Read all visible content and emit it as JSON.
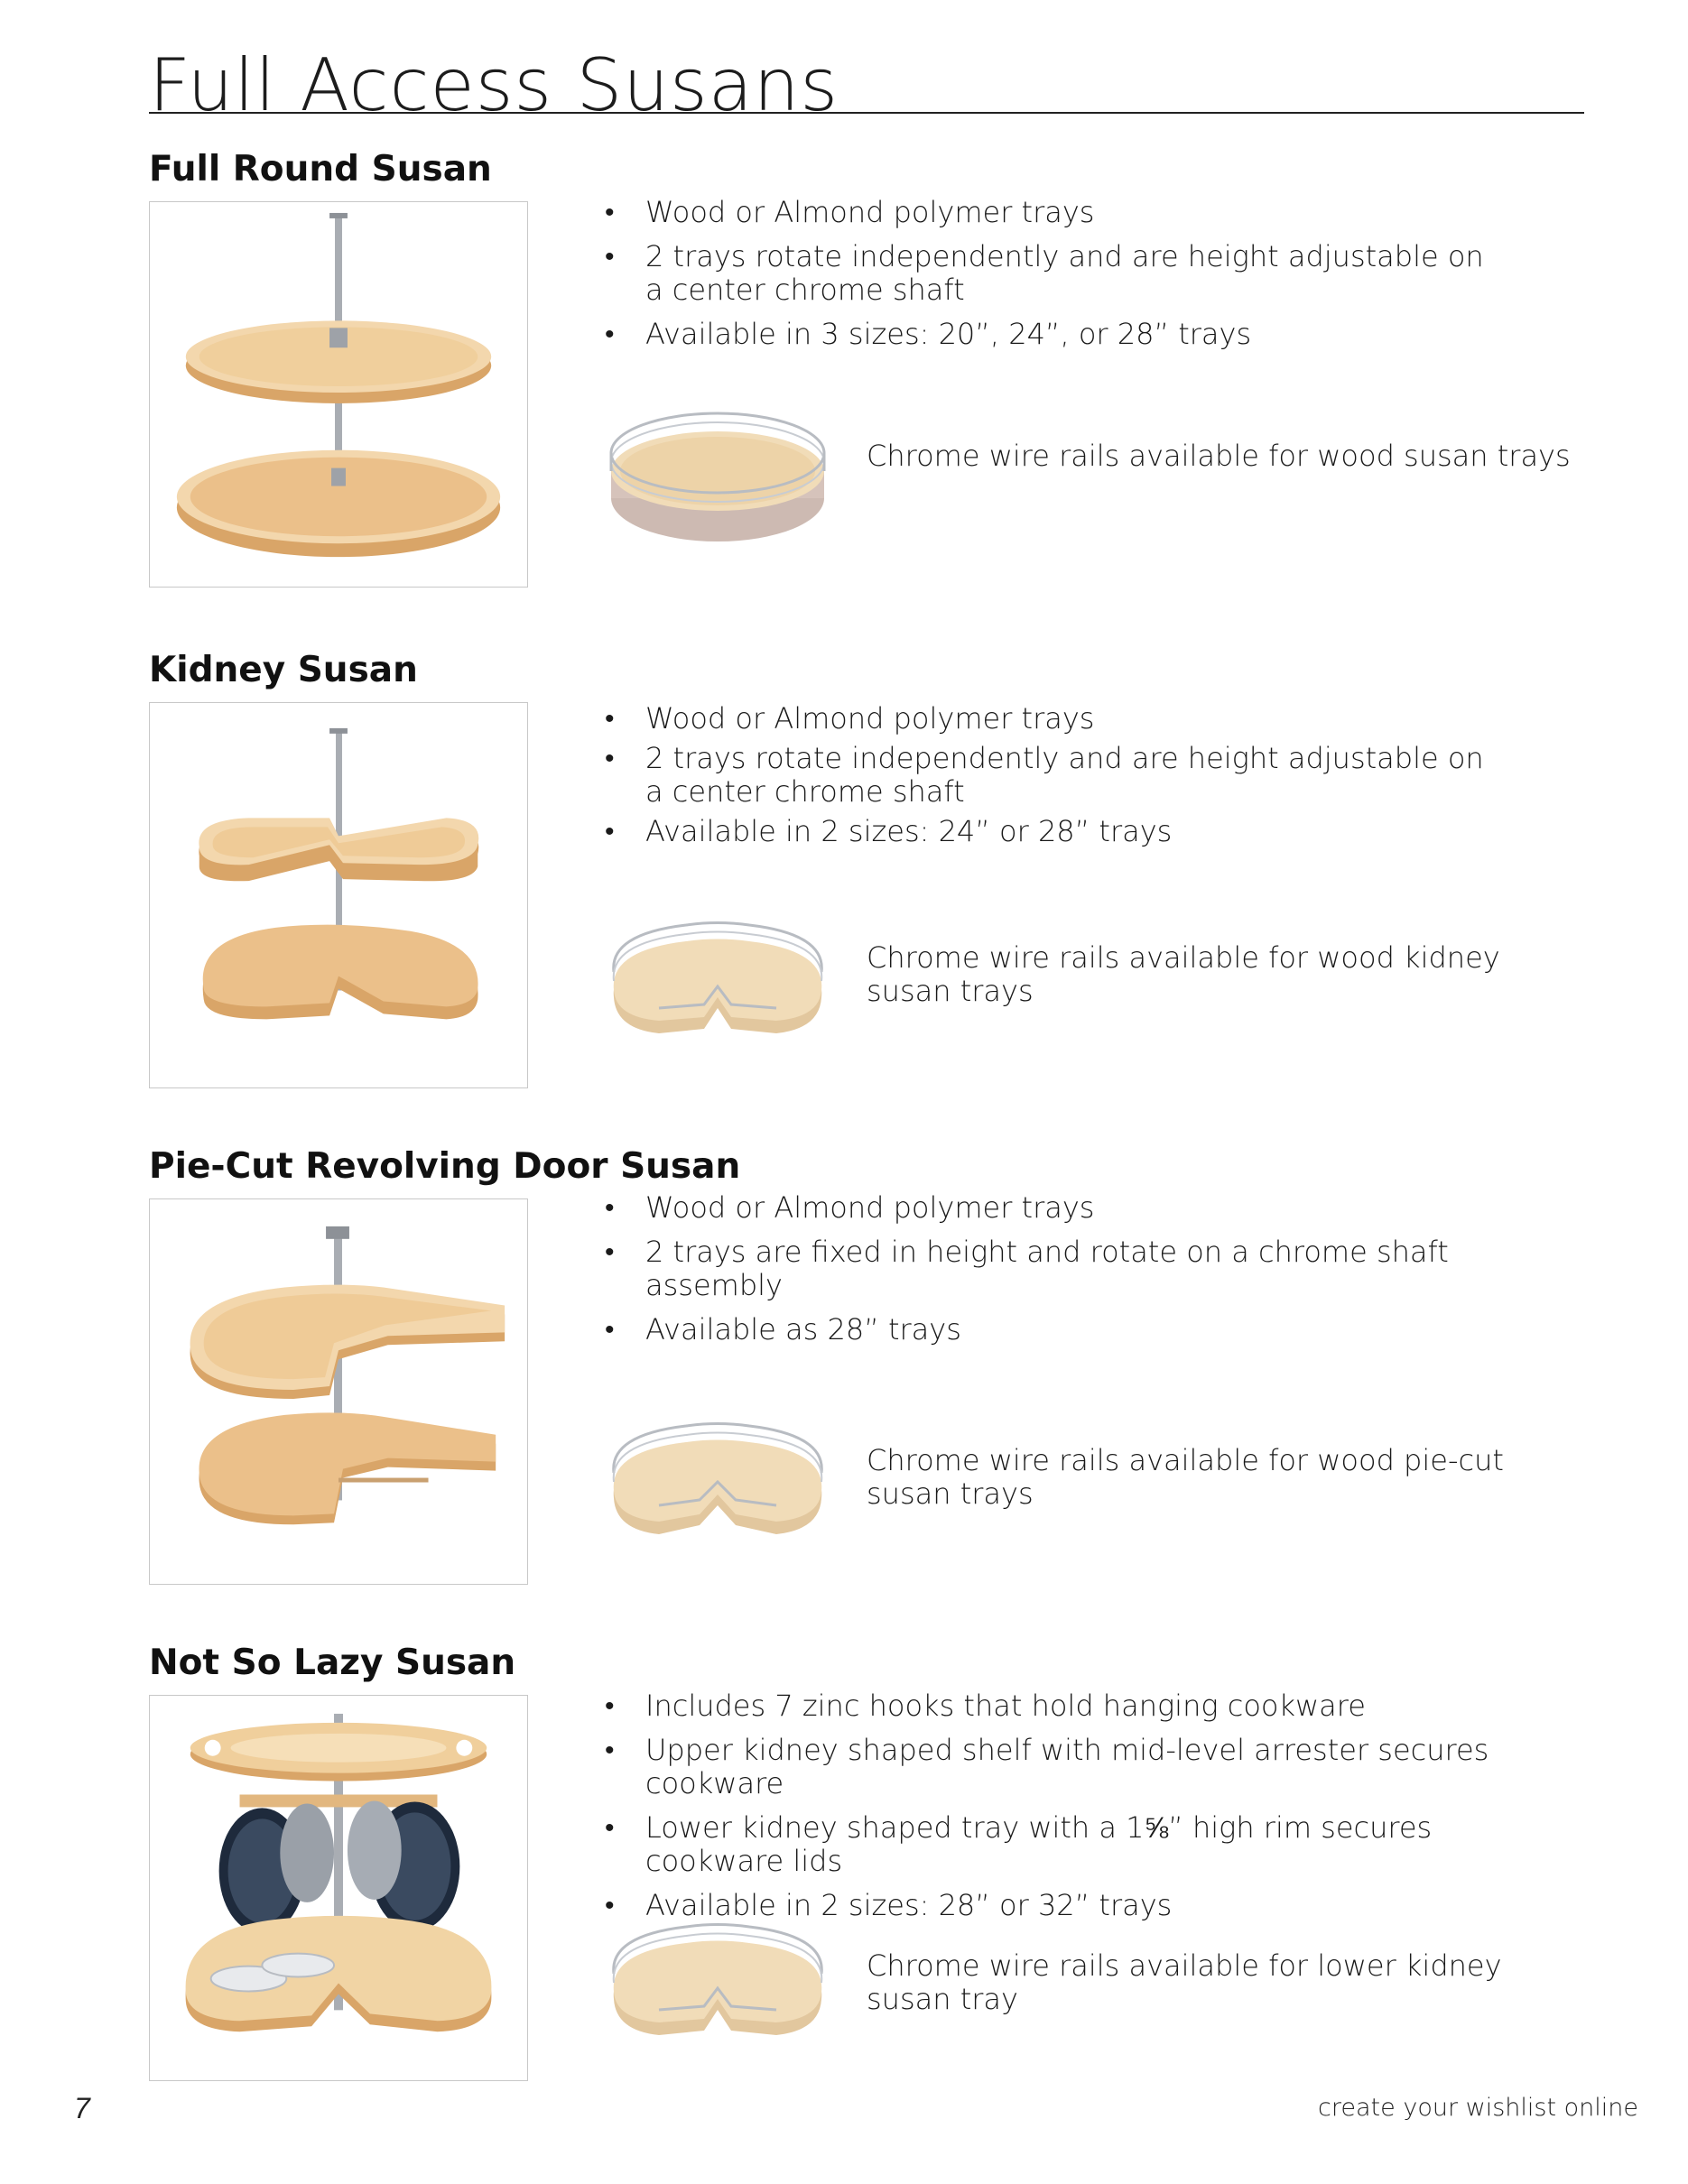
{
  "page": {
    "title": "Full Access Susans",
    "page_number": "7",
    "footer": "create your wishlist online"
  },
  "colors": {
    "wood_light": "#f3d7ad",
    "wood_mid": "#e8bd85",
    "wood_edge": "#d9a568",
    "chrome": "#b8bcc2",
    "frame_border": "#c8c8c8"
  },
  "sections": [
    {
      "heading": "Full Round Susan",
      "bullets": [
        "Wood or Almond polymer trays",
        "2 trays rotate independently and are height adjustable on a center chrome shaft",
        "Available in 3 sizes: 20”, 24”, or 28” trays"
      ],
      "rail_caption": "Chrome wire rails available for wood susan trays"
    },
    {
      "heading": "Kidney Susan",
      "bullets": [
        "Wood or Almond polymer trays",
        "2 trays rotate independently and are height adjustable on a center chrome shaft",
        "Available in 2 sizes: 24” or 28” trays"
      ],
      "rail_caption": "Chrome wire rails available for wood kidney susan trays"
    },
    {
      "heading": "Pie-Cut Revolving Door Susan",
      "bullets": [
        "Wood or Almond polymer trays",
        "2 trays are fixed in height and rotate on a chrome shaft assembly",
        "Available as 28” trays"
      ],
      "rail_caption": "Chrome wire rails available for wood pie-cut susan trays"
    },
    {
      "heading": "Not So Lazy Susan",
      "bullets": [
        "Includes 7 zinc hooks that hold hanging cookware",
        "Upper kidney shaped shelf with mid-level arrester secures cookware",
        "Lower kidney shaped tray with a 1⅝” high rim secures cookware lids",
        "Available in 2 sizes: 28” or 32” trays"
      ],
      "rail_caption": "Chrome wire rails available for lower kidney susan tray"
    }
  ]
}
